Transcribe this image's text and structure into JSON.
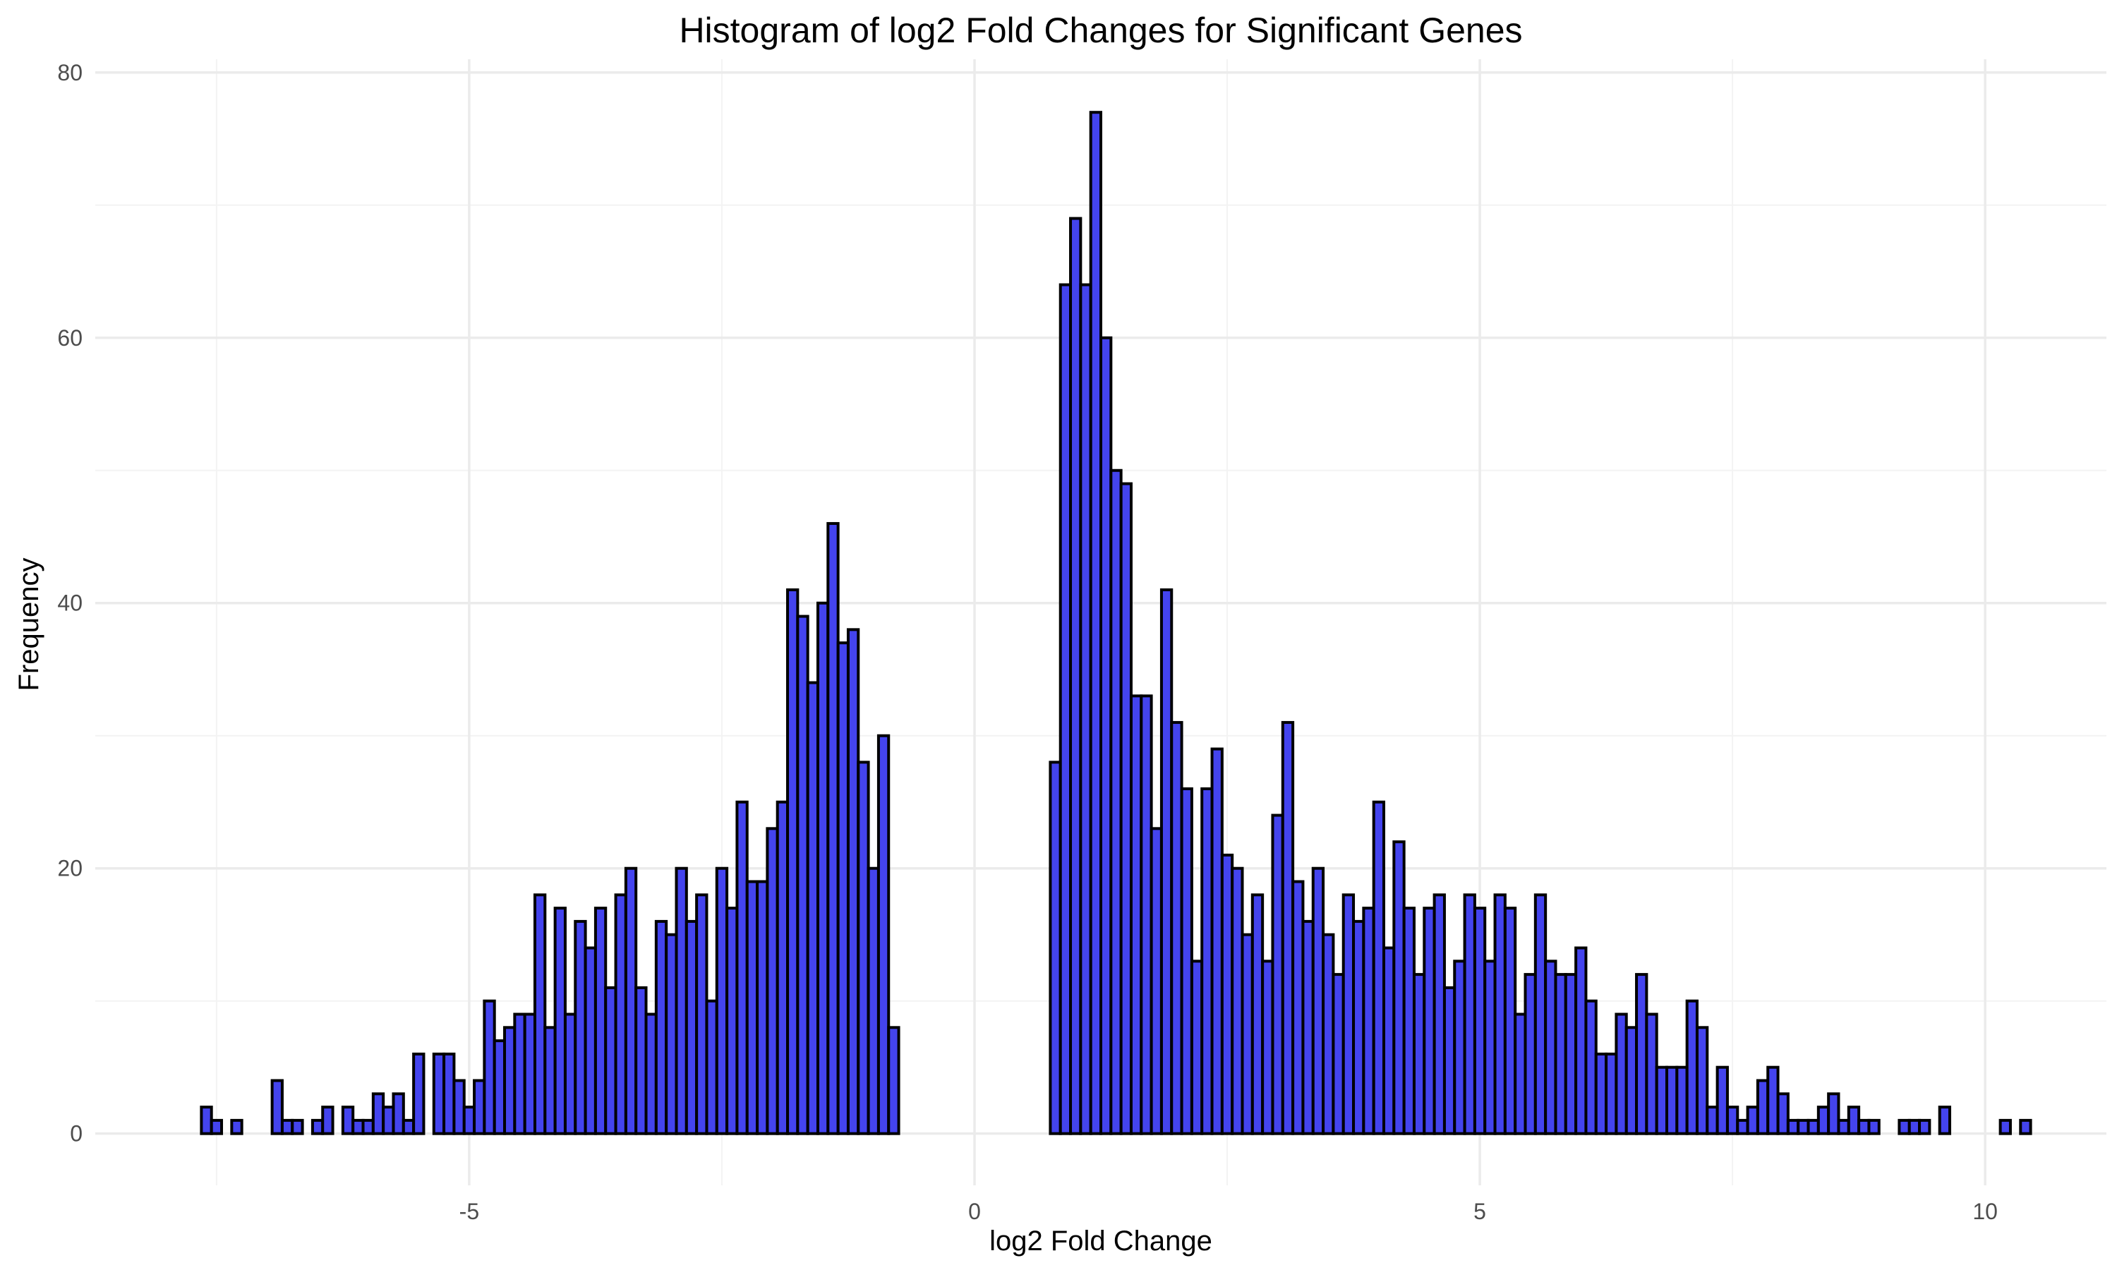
{
  "chart_data": {
    "type": "bar",
    "title": "Histogram of log2 Fold Changes for Significant Genes",
    "xlabel": "log2 Fold Change",
    "ylabel": "Frequency",
    "xlim": [
      -8.7,
      11.2
    ],
    "ylim": [
      -3.9,
      81
    ],
    "x_ticks": [
      -5,
      0,
      5,
      10
    ],
    "x_tick_labels": [
      "-5",
      "0",
      "5",
      "10"
    ],
    "y_ticks": [
      0,
      20,
      40,
      60,
      80
    ],
    "y_tick_labels": [
      "0",
      "20",
      "40",
      "60",
      "80"
    ],
    "grid": true,
    "legend": "none",
    "bin_width": 0.1,
    "bin_start": -7.65,
    "bar_color": "#4444ee",
    "bar_edge_color": "#000000",
    "values": [
      2,
      1,
      0,
      1,
      0,
      0,
      0,
      4,
      1,
      1,
      0,
      1,
      2,
      0,
      2,
      1,
      1,
      3,
      2,
      3,
      1,
      6,
      0,
      6,
      6,
      4,
      2,
      4,
      10,
      7,
      8,
      9,
      9,
      18,
      8,
      17,
      9,
      16,
      14,
      17,
      11,
      18,
      20,
      11,
      9,
      16,
      15,
      20,
      16,
      18,
      10,
      20,
      17,
      25,
      19,
      19,
      23,
      25,
      41,
      39,
      34,
      40,
      46,
      37,
      38,
      28,
      20,
      30,
      8,
      0,
      0,
      0,
      0,
      0,
      0,
      0,
      0,
      0,
      0,
      0,
      0,
      0,
      0,
      0,
      28,
      64,
      69,
      64,
      77,
      60,
      50,
      49,
      33,
      33,
      23,
      41,
      31,
      26,
      13,
      26,
      29,
      21,
      20,
      15,
      18,
      13,
      24,
      31,
      19,
      16,
      20,
      15,
      12,
      18,
      16,
      17,
      25,
      14,
      22,
      17,
      12,
      17,
      18,
      11,
      13,
      18,
      17,
      13,
      18,
      17,
      9,
      12,
      18,
      13,
      12,
      12,
      14,
      10,
      6,
      6,
      9,
      8,
      12,
      9,
      5,
      5,
      5,
      10,
      8,
      2,
      5,
      2,
      1,
      2,
      4,
      5,
      3,
      1,
      1,
      1,
      2,
      3,
      1,
      2,
      1,
      1,
      0,
      0,
      1,
      1,
      1,
      0,
      2,
      0,
      0,
      0,
      0,
      0,
      1,
      0,
      1
    ]
  }
}
